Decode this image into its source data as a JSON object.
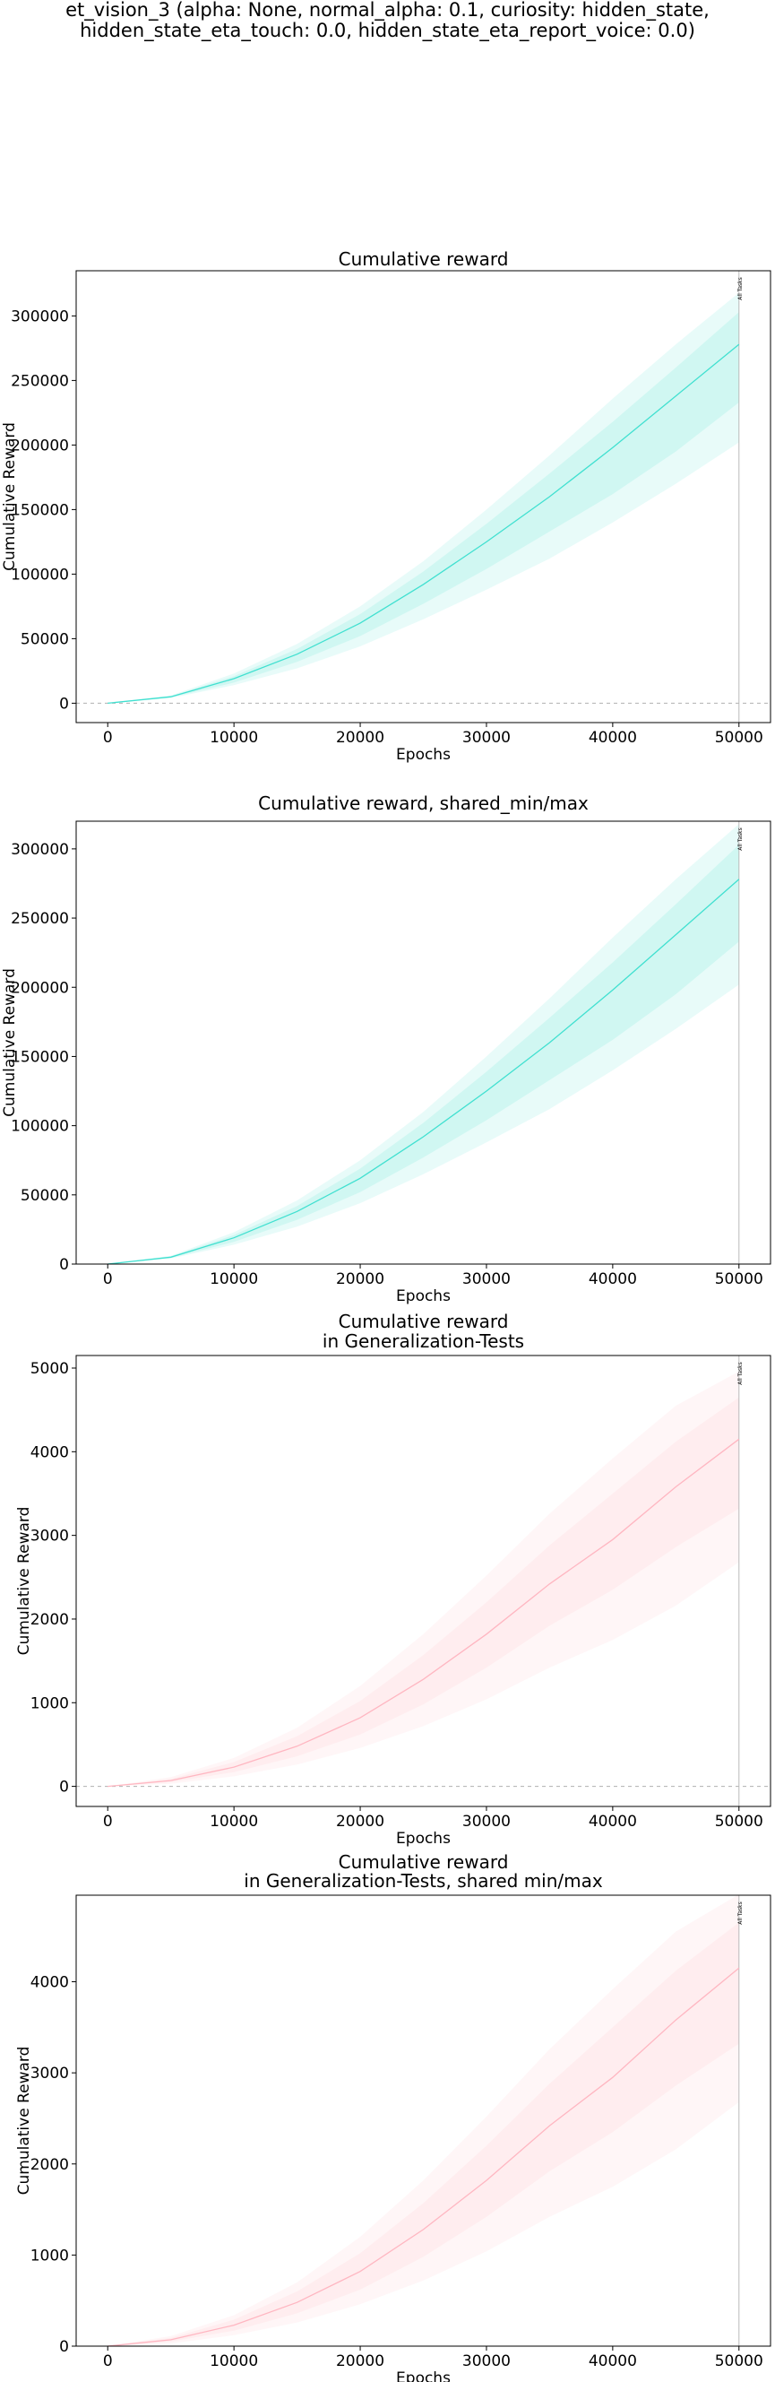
{
  "figure": {
    "suptitle_lines": [
      "et_vision_3 (alpha: None, normal_alpha: 0.1, curiosity: hidden_state,",
      "hidden_state_eta_touch: 0.0, hidden_state_eta_report_voice: 0.0)"
    ],
    "colors": {
      "cumulative": "#40E0D0",
      "generalization": "#FFB6C1",
      "axis": "#000000",
      "vline": "#bbbbbb",
      "zeroline": "#b0b0b0"
    }
  },
  "chart_data": [
    {
      "type": "line",
      "title_lines": [
        "Cumulative reward"
      ],
      "xlabel": "Epochs",
      "ylabel": "Cumulative Reward",
      "xlim": [
        -2500,
        52500
      ],
      "ylim": [
        -15000,
        335000
      ],
      "xticks": [
        0,
        10000,
        20000,
        30000,
        40000,
        50000
      ],
      "yticks": [
        0,
        50000,
        100000,
        150000,
        200000,
        250000,
        300000
      ],
      "zero_line": true,
      "vline": {
        "x": 50000,
        "label": "All Tasks"
      },
      "color": "#40E0D0",
      "x": [
        0,
        5000,
        10000,
        15000,
        20000,
        25000,
        30000,
        35000,
        40000,
        45000,
        50000
      ],
      "mean": [
        0,
        5000,
        19000,
        38000,
        62000,
        92000,
        125000,
        160000,
        198000,
        238000,
        278000
      ],
      "inner_low": [
        0,
        4500,
        16000,
        32000,
        52000,
        77000,
        104000,
        133000,
        162000,
        195000,
        233000
      ],
      "inner_high": [
        0,
        5500,
        21000,
        42000,
        69000,
        102000,
        139000,
        178000,
        218000,
        260000,
        303000
      ],
      "outer_low": [
        0,
        4000,
        14000,
        27000,
        44000,
        65000,
        88000,
        112000,
        140000,
        170000,
        202000
      ],
      "outer_high": [
        0,
        6000,
        23000,
        46000,
        75000,
        110000,
        150000,
        192000,
        236000,
        278000,
        318000
      ]
    },
    {
      "type": "line",
      "title_lines": [
        "Cumulative reward, shared_min/max"
      ],
      "xlabel": "Epochs",
      "ylabel": "Cumulative Reward",
      "xlim": [
        -2500,
        52500
      ],
      "ylim": [
        0,
        320000
      ],
      "xticks": [
        0,
        10000,
        20000,
        30000,
        40000,
        50000
      ],
      "yticks": [
        0,
        50000,
        100000,
        150000,
        200000,
        250000,
        300000
      ],
      "zero_line": false,
      "vline": {
        "x": 50000,
        "label": "All Tasks"
      },
      "color": "#40E0D0",
      "x": [
        0,
        5000,
        10000,
        15000,
        20000,
        25000,
        30000,
        35000,
        40000,
        45000,
        50000
      ],
      "mean": [
        0,
        5000,
        19000,
        38000,
        62000,
        92000,
        125000,
        160000,
        198000,
        238000,
        278000
      ],
      "inner_low": [
        0,
        4500,
        16000,
        32000,
        52000,
        77000,
        104000,
        133000,
        162000,
        195000,
        233000
      ],
      "inner_high": [
        0,
        5500,
        21000,
        42000,
        69000,
        102000,
        139000,
        178000,
        218000,
        260000,
        303000
      ],
      "outer_low": [
        0,
        4000,
        14000,
        27000,
        44000,
        65000,
        88000,
        112000,
        140000,
        170000,
        202000
      ],
      "outer_high": [
        0,
        6000,
        23000,
        46000,
        75000,
        110000,
        150000,
        192000,
        236000,
        278000,
        318000
      ]
    },
    {
      "type": "line",
      "title_lines": [
        "Cumulative reward",
        "in Generalization-Tests"
      ],
      "xlabel": "Epochs",
      "ylabel": "Cumulative Reward",
      "xlim": [
        -2500,
        52500
      ],
      "ylim": [
        -240,
        5150
      ],
      "xticks": [
        0,
        10000,
        20000,
        30000,
        40000,
        50000
      ],
      "yticks": [
        0,
        1000,
        2000,
        3000,
        4000,
        5000
      ],
      "zero_line": true,
      "vline": {
        "x": 50000,
        "label": "All Tasks"
      },
      "color": "#FFB6C1",
      "x": [
        0,
        5000,
        10000,
        15000,
        20000,
        25000,
        30000,
        35000,
        40000,
        45000,
        50000
      ],
      "mean": [
        0,
        70,
        230,
        480,
        820,
        1280,
        1820,
        2420,
        2950,
        3580,
        4150
      ],
      "inner_low": [
        0,
        50,
        170,
        360,
        620,
        980,
        1420,
        1920,
        2350,
        2860,
        3320
      ],
      "inner_high": [
        0,
        90,
        290,
        600,
        1020,
        1570,
        2200,
        2880,
        3500,
        4120,
        4650
      ],
      "outer_low": [
        0,
        30,
        120,
        260,
        460,
        720,
        1040,
        1420,
        1750,
        2160,
        2680
      ],
      "outer_high": [
        0,
        110,
        340,
        700,
        1200,
        1820,
        2520,
        3260,
        3920,
        4550,
        4960
      ]
    },
    {
      "type": "line",
      "title_lines": [
        "Cumulative reward",
        "in Generalization-Tests, shared min/max"
      ],
      "xlabel": "Epochs",
      "ylabel": "Cumulative Reward",
      "xlim": [
        -2500,
        52500
      ],
      "ylim": [
        0,
        4950
      ],
      "xticks": [
        0,
        10000,
        20000,
        30000,
        40000,
        50000
      ],
      "yticks": [
        0,
        1000,
        2000,
        3000,
        4000
      ],
      "zero_line": false,
      "vline": {
        "x": 50000,
        "label": "All Tasks"
      },
      "color": "#FFB6C1",
      "x": [
        0,
        5000,
        10000,
        15000,
        20000,
        25000,
        30000,
        35000,
        40000,
        45000,
        50000
      ],
      "mean": [
        0,
        70,
        230,
        480,
        820,
        1280,
        1820,
        2420,
        2950,
        3580,
        4150
      ],
      "inner_low": [
        0,
        50,
        170,
        360,
        620,
        980,
        1420,
        1920,
        2350,
        2860,
        3320
      ],
      "inner_high": [
        0,
        90,
        290,
        600,
        1020,
        1570,
        2200,
        2880,
        3500,
        4120,
        4650
      ],
      "outer_low": [
        0,
        30,
        120,
        260,
        460,
        720,
        1040,
        1420,
        1750,
        2160,
        2680
      ],
      "outer_high": [
        0,
        110,
        340,
        700,
        1200,
        1820,
        2520,
        3260,
        3920,
        4550,
        4960
      ]
    }
  ]
}
